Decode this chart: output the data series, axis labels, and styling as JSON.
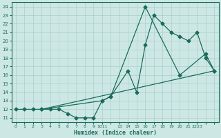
{
  "xlabel": "Humidex (Indice chaleur)",
  "bg_color": "#cde8e4",
  "grid_color": "#aacfcb",
  "line_color": "#1a6b58",
  "xlim": [
    -0.5,
    23.5
  ],
  "ylim": [
    10.5,
    24.5
  ],
  "yticks": [
    11,
    12,
    13,
    14,
    15,
    16,
    17,
    18,
    19,
    20,
    21,
    22,
    23,
    24
  ],
  "xtick_positions": [
    0,
    1,
    2,
    3,
    4,
    5,
    6,
    7,
    8,
    9,
    10,
    11,
    12,
    13,
    14,
    15,
    16,
    17,
    18,
    19,
    20,
    21,
    22,
    23
  ],
  "xtick_labels": [
    "0",
    "1",
    "2",
    "3",
    "4",
    "5",
    "6",
    "7",
    "8",
    "9",
    "1011",
    "",
    "13",
    "14",
    "15",
    "16",
    "17",
    "18",
    "19",
    "20",
    "21",
    "2223",
    "",
    ""
  ],
  "line1_x": [
    0,
    1,
    2,
    3,
    4,
    5,
    6,
    7,
    8,
    9,
    10,
    11,
    13,
    14,
    15,
    16,
    17,
    18,
    19,
    20,
    21,
    22,
    23
  ],
  "line1_y": [
    12,
    12,
    12,
    12,
    12,
    12,
    11.5,
    11,
    11,
    11,
    13,
    13.5,
    16.5,
    14,
    19.5,
    23,
    22,
    21,
    20.5,
    20,
    21,
    18,
    16.5
  ],
  "line2_x": [
    3,
    10,
    11,
    15,
    19,
    22,
    23
  ],
  "line2_y": [
    12,
    13,
    13.5,
    24,
    16,
    18.5,
    16.5
  ],
  "line3_x": [
    3,
    23
  ],
  "line3_y": [
    12,
    16.5
  ],
  "marker_size": 2.5,
  "linewidth": 0.9
}
